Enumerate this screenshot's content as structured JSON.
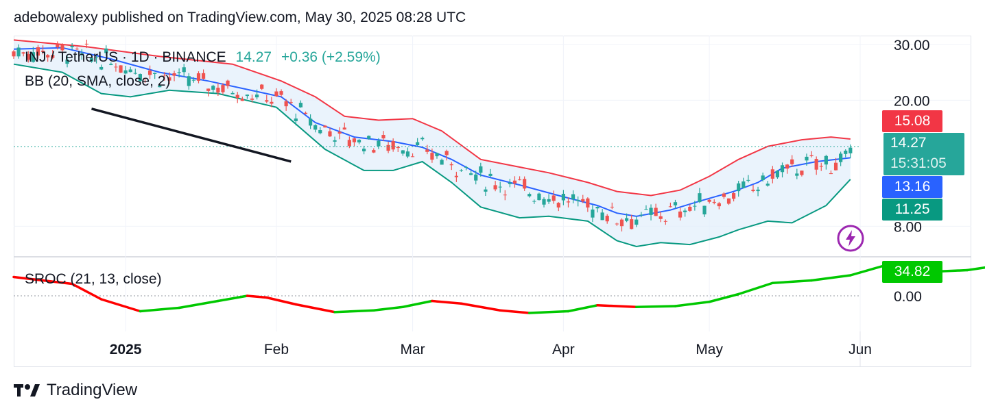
{
  "header": {
    "publisher_line": "adebowalexy published on TradingView.com, May 30, 2025 08:28 UTC"
  },
  "legend": {
    "symbol": "INJ / TetherUS · 1D · BINANCE",
    "last_price": "14.27",
    "change": "+0.36 (+2.59%)",
    "bb_label": "BB (20, SMA, close, 2)",
    "sroc_label": "SROC (21, 13, close)"
  },
  "price_tags": {
    "bb_upper": "15.08",
    "last": "14.27",
    "countdown": "15:31:05",
    "bb_basis": "13.16",
    "bb_lower": "11.25",
    "sroc_value": "34.82"
  },
  "axes": {
    "price_ticks": [
      "30.00",
      "20.00",
      "8.00"
    ],
    "sroc_ticks": [
      "0.00"
    ],
    "time_ticks": [
      "2025",
      "Feb",
      "Mar",
      "Apr",
      "May",
      "Jun"
    ]
  },
  "footer": {
    "brand": "TradingView"
  },
  "colors": {
    "up": "#26a69a",
    "down": "#ef5350",
    "bb_upper": "#f23645",
    "bb_basis": "#2962ff",
    "bb_lower": "#089981",
    "sroc_up": "#00c800",
    "sroc_down": "#ff0000",
    "last_tag": "#26a69a",
    "basis_tag": "#2962ff",
    "lower_tag": "#089981",
    "upper_tag": "#f23645"
  },
  "chart_data": {
    "type": "candlestick",
    "symbol": "INJ / TetherUS",
    "interval": "1D",
    "x_range": [
      "2024-12-09",
      "2025-05-30"
    ],
    "price_axis_scale": "log",
    "ylim_price": [
      6.5,
      32
    ],
    "series": [
      {
        "name": "BB (20, SMA, close, 2)",
        "kind": "bands",
        "upper": [
          [
            0,
            31.0
          ],
          [
            15,
            29.5
          ],
          [
            30,
            27.5
          ],
          [
            45,
            26.0
          ],
          [
            55,
            23.0
          ],
          [
            62,
            20.5
          ],
          [
            68,
            17.8
          ],
          [
            75,
            17.3
          ],
          [
            82,
            17.5
          ],
          [
            88,
            16.0
          ],
          [
            96,
            13.0
          ],
          [
            104,
            12.3
          ],
          [
            110,
            11.8
          ],
          [
            118,
            11.0
          ],
          [
            124,
            10.3
          ],
          [
            131,
            10.0
          ],
          [
            137,
            10.4
          ],
          [
            143,
            11.5
          ],
          [
            149,
            13.0
          ],
          [
            155,
            14.3
          ],
          [
            162,
            15.0
          ],
          [
            168,
            15.3
          ],
          [
            172,
            15.08
          ]
        ],
        "basis": [
          [
            0,
            29.0
          ],
          [
            10,
            29.3
          ],
          [
            20,
            27.0
          ],
          [
            30,
            24.5
          ],
          [
            40,
            23.0
          ],
          [
            55,
            20.5
          ],
          [
            62,
            17.0
          ],
          [
            70,
            15.3
          ],
          [
            78,
            14.8
          ],
          [
            84,
            14.2
          ],
          [
            90,
            13.0
          ],
          [
            96,
            11.6
          ],
          [
            104,
            10.8
          ],
          [
            112,
            10.0
          ],
          [
            120,
            9.3
          ],
          [
            124,
            8.8
          ],
          [
            128,
            8.6
          ],
          [
            135,
            9.0
          ],
          [
            141,
            9.6
          ],
          [
            148,
            10.3
          ],
          [
            153,
            11.0
          ],
          [
            158,
            12.2
          ],
          [
            165,
            12.8
          ],
          [
            172,
            13.16
          ]
        ],
        "lower": [
          [
            0,
            26.0
          ],
          [
            10,
            24.5
          ],
          [
            18,
            21.0
          ],
          [
            24,
            20.5
          ],
          [
            32,
            21.5
          ],
          [
            42,
            21.0
          ],
          [
            54,
            19.0
          ],
          [
            64,
            14.0
          ],
          [
            72,
            12.0
          ],
          [
            78,
            12.0
          ],
          [
            84,
            12.8
          ],
          [
            90,
            11.0
          ],
          [
            96,
            9.2
          ],
          [
            104,
            8.5
          ],
          [
            110,
            8.6
          ],
          [
            118,
            8.3
          ],
          [
            124,
            7.2
          ],
          [
            128,
            6.9
          ],
          [
            133,
            7.1
          ],
          [
            139,
            7.0
          ],
          [
            145,
            7.4
          ],
          [
            149,
            7.8
          ],
          [
            155,
            8.3
          ],
          [
            160,
            8.2
          ],
          [
            167,
            9.3
          ],
          [
            172,
            11.25
          ]
        ]
      },
      {
        "name": "SROC (21, 13, close)",
        "kind": "line",
        "values": [
          [
            0,
            22
          ],
          [
            12,
            14
          ],
          [
            18,
            -4
          ],
          [
            26,
            -18
          ],
          [
            34,
            -14
          ],
          [
            42,
            -6
          ],
          [
            48,
            0
          ],
          [
            52,
            -2
          ],
          [
            58,
            -10
          ],
          [
            66,
            -19
          ],
          [
            74,
            -17
          ],
          [
            80,
            -13
          ],
          [
            86,
            -6
          ],
          [
            92,
            -9
          ],
          [
            100,
            -17
          ],
          [
            106,
            -20
          ],
          [
            114,
            -18
          ],
          [
            120,
            -11
          ],
          [
            128,
            -13
          ],
          [
            136,
            -12
          ],
          [
            143,
            -7
          ],
          [
            149,
            2
          ],
          [
            156,
            15
          ],
          [
            164,
            18
          ],
          [
            172,
            24
          ],
          [
            180,
            37
          ],
          [
            188,
            28
          ],
          [
            196,
            30
          ],
          [
            202,
            35
          ],
          [
            206,
            34.82
          ]
        ]
      }
    ],
    "annotations": [
      {
        "type": "trendline",
        "color": "#131722",
        "from": [
          "2024-12-25",
          18.8
        ],
        "to": [
          "2025-02-04",
          12.8
        ]
      }
    ]
  }
}
